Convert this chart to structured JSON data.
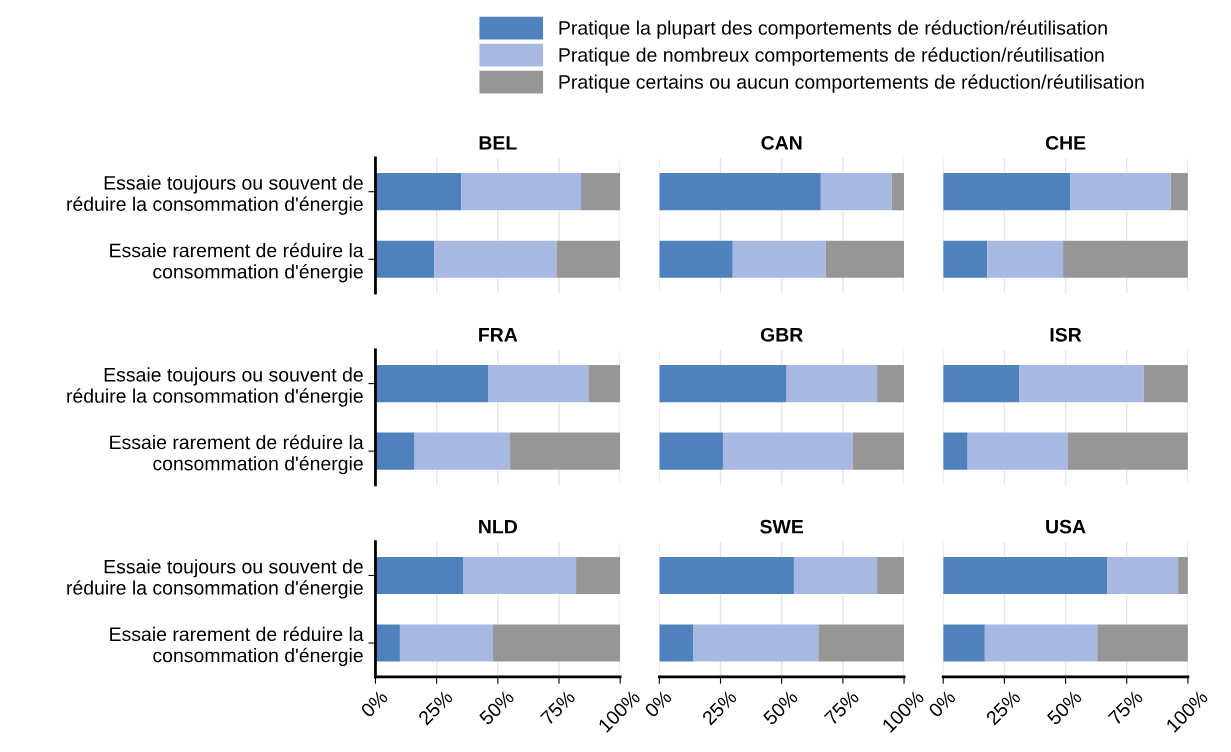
{
  "chart_data": [
    {
      "type": "bar",
      "title": "BEL",
      "orientation": "horizontal",
      "stacked": true,
      "legend": "top",
      "tick_labels": "y",
      "grid": "x",
      "categories": [
        "Essaie toujours ou souvent de\nréduire la consommation d'énergie",
        "Essaie rarement de réduire la\nconsommation d'énergie"
      ],
      "xlim": [
        0,
        100
      ],
      "xticks": [
        {
          "value": 0,
          "label": "0%"
        },
        {
          "value": 25,
          "label": "25%"
        },
        {
          "value": 50,
          "label": "50%"
        },
        {
          "value": 75,
          "label": "75%"
        },
        {
          "value": 100,
          "label": "100%"
        }
      ],
      "series": [
        {
          "name": "Pratique la plupart des comportements de réduction/réutilisation",
          "color": "#4f81bd",
          "values": [
            35,
            24
          ]
        },
        {
          "name": "Pratique de nombreux comportements de réduction/réutilisation",
          "color": "#a7b9e3",
          "values": [
            49,
            50
          ]
        },
        {
          "name": "Pratique certains ou aucun comportements de réduction/réutilisation",
          "color": "#969696",
          "values": [
            16,
            26
          ]
        }
      ]
    },
    {
      "type": "bar",
      "title": "CAN",
      "orientation": "horizontal",
      "stacked": true,
      "tick_labels": false,
      "grid": "x",
      "categories": [
        "Essaie toujours ou souvent de\nréduire la consommation d'énergie",
        "Essaie rarement de réduire la\nconsommation d'énergie"
      ],
      "xlim": [
        0,
        100
      ],
      "xticks": [
        {
          "value": 0,
          "label": "0%"
        },
        {
          "value": 25,
          "label": "25%"
        },
        {
          "value": 50,
          "label": "50%"
        },
        {
          "value": 75,
          "label": "75%"
        },
        {
          "value": 100,
          "label": "100%"
        }
      ],
      "series": [
        {
          "color": "#4f81bd",
          "values": [
            66,
            30
          ]
        },
        {
          "color": "#a7b9e3",
          "values": [
            29,
            38
          ]
        },
        {
          "color": "#969696",
          "values": [
            5,
            32
          ]
        }
      ]
    },
    {
      "type": "bar",
      "title": "CHE",
      "orientation": "horizontal",
      "stacked": true,
      "tick_labels": false,
      "grid": "x",
      "categories": [
        "Essaie toujours ou souvent de\nréduire la consommation d'énergie",
        "Essaie rarement de réduire la\nconsommation d'énergie"
      ],
      "xlim": [
        0,
        100
      ],
      "xticks": [
        {
          "value": 0,
          "label": "0%"
        },
        {
          "value": 25,
          "label": "25%"
        },
        {
          "value": 50,
          "label": "50%"
        },
        {
          "value": 75,
          "label": "75%"
        },
        {
          "value": 100,
          "label": "100%"
        }
      ],
      "series": [
        {
          "color": "#4f81bd",
          "values": [
            52,
            18
          ]
        },
        {
          "color": "#a7b9e3",
          "values": [
            41,
            31
          ]
        },
        {
          "color": "#969696",
          "values": [
            7,
            51
          ]
        }
      ]
    },
    {
      "type": "bar",
      "title": "FRA",
      "orientation": "horizontal",
      "stacked": true,
      "tick_labels": "y",
      "grid": "x",
      "categories": [
        "Essaie toujours ou souvent de\nréduire la consommation d'énergie",
        "Essaie rarement de réduire la\nconsommation d'énergie"
      ],
      "xlim": [
        0,
        100
      ],
      "xticks": [
        {
          "value": 0,
          "label": "0%"
        },
        {
          "value": 25,
          "label": "25%"
        },
        {
          "value": 50,
          "label": "50%"
        },
        {
          "value": 75,
          "label": "75%"
        },
        {
          "value": 100,
          "label": "100%"
        }
      ],
      "series": [
        {
          "color": "#4f81bd",
          "values": [
            46,
            16
          ]
        },
        {
          "color": "#a7b9e3",
          "values": [
            41,
            39
          ]
        },
        {
          "color": "#969696",
          "values": [
            13,
            45
          ]
        }
      ]
    },
    {
      "type": "bar",
      "title": "GBR",
      "orientation": "horizontal",
      "stacked": true,
      "tick_labels": false,
      "grid": "x",
      "categories": [
        "Essaie toujours ou souvent de\nréduire la consommation d'énergie",
        "Essaie rarement de réduire la\nconsommation d'énergie"
      ],
      "xlim": [
        0,
        100
      ],
      "xticks": [
        {
          "value": 0,
          "label": "0%"
        },
        {
          "value": 25,
          "label": "25%"
        },
        {
          "value": 50,
          "label": "50%"
        },
        {
          "value": 75,
          "label": "75%"
        },
        {
          "value": 100,
          "label": "100%"
        }
      ],
      "series": [
        {
          "color": "#4f81bd",
          "values": [
            52,
            26
          ]
        },
        {
          "color": "#a7b9e3",
          "values": [
            37,
            53
          ]
        },
        {
          "color": "#969696",
          "values": [
            11,
            21
          ]
        }
      ]
    },
    {
      "type": "bar",
      "title": "ISR",
      "orientation": "horizontal",
      "stacked": true,
      "tick_labels": false,
      "grid": "x",
      "categories": [
        "Essaie toujours ou souvent de\nréduire la consommation d'énergie",
        "Essaie rarement de réduire la\nconsommation d'énergie"
      ],
      "xlim": [
        0,
        100
      ],
      "xticks": [
        {
          "value": 0,
          "label": "0%"
        },
        {
          "value": 25,
          "label": "25%"
        },
        {
          "value": 50,
          "label": "50%"
        },
        {
          "value": 75,
          "label": "75%"
        },
        {
          "value": 100,
          "label": "100%"
        }
      ],
      "series": [
        {
          "color": "#4f81bd",
          "values": [
            31,
            10
          ]
        },
        {
          "color": "#a7b9e3",
          "values": [
            51,
            41
          ]
        },
        {
          "color": "#969696",
          "values": [
            18,
            49
          ]
        }
      ]
    },
    {
      "type": "bar",
      "title": "NLD",
      "orientation": "horizontal",
      "stacked": true,
      "grid": "x",
      "categories": [
        "Essaie toujours ou souvent de\nréduire la consommation d'énergie",
        "Essaie rarement de réduire la\nconsommation d'énergie"
      ],
      "xlim": [
        0,
        100
      ],
      "xticks": [
        {
          "value": 0,
          "label": "0%"
        },
        {
          "value": 25,
          "label": "25%"
        },
        {
          "value": 50,
          "label": "50%"
        },
        {
          "value": 75,
          "label": "75%"
        },
        {
          "value": 100,
          "label": "100%"
        }
      ],
      "series": [
        {
          "color": "#4f81bd",
          "values": [
            36,
            10
          ]
        },
        {
          "color": "#a7b9e3",
          "values": [
            46,
            38
          ]
        },
        {
          "color": "#969696",
          "values": [
            18,
            52
          ]
        }
      ]
    },
    {
      "type": "bar",
      "title": "SWE",
      "orientation": "horizontal",
      "stacked": true,
      "tick_labels": "x",
      "grid": "x",
      "categories": [
        "Essaie toujours ou souvent de\nréduire la consommation d'énergie",
        "Essaie rarement de réduire la\nconsommation d'énergie"
      ],
      "xlim": [
        0,
        100
      ],
      "xticks": [
        {
          "value": 0,
          "label": "0%"
        },
        {
          "value": 25,
          "label": "25%"
        },
        {
          "value": 50,
          "label": "50%"
        },
        {
          "value": 75,
          "label": "75%"
        },
        {
          "value": 100,
          "label": "100%"
        }
      ],
      "series": [
        {
          "color": "#4f81bd",
          "values": [
            55,
            14
          ]
        },
        {
          "color": "#a7b9e3",
          "values": [
            34,
            51
          ]
        },
        {
          "color": "#969696",
          "values": [
            11,
            35
          ]
        }
      ]
    },
    {
      "type": "bar",
      "title": "USA",
      "orientation": "horizontal",
      "stacked": true,
      "tick_labels": "x",
      "grid": "x",
      "categories": [
        "Essaie toujours ou souvent de\nréduire la consommation d'énergie",
        "Essaie rarement de réduire la\nconsommation d'énergie"
      ],
      "xlim": [
        0,
        100
      ],
      "xticks": [
        {
          "value": 0,
          "label": "0%"
        },
        {
          "value": 25,
          "label": "25%"
        },
        {
          "value": 50,
          "label": "50%"
        },
        {
          "value": 75,
          "label": "75%"
        },
        {
          "value": 100,
          "label": "100%"
        }
      ],
      "series": [
        {
          "color": "#4f81bd",
          "values": [
            67,
            17
          ]
        },
        {
          "color": "#a7b9e3",
          "values": [
            29,
            46
          ]
        },
        {
          "color": "#969696",
          "values": [
            4,
            37
          ]
        }
      ]
    }
  ]
}
